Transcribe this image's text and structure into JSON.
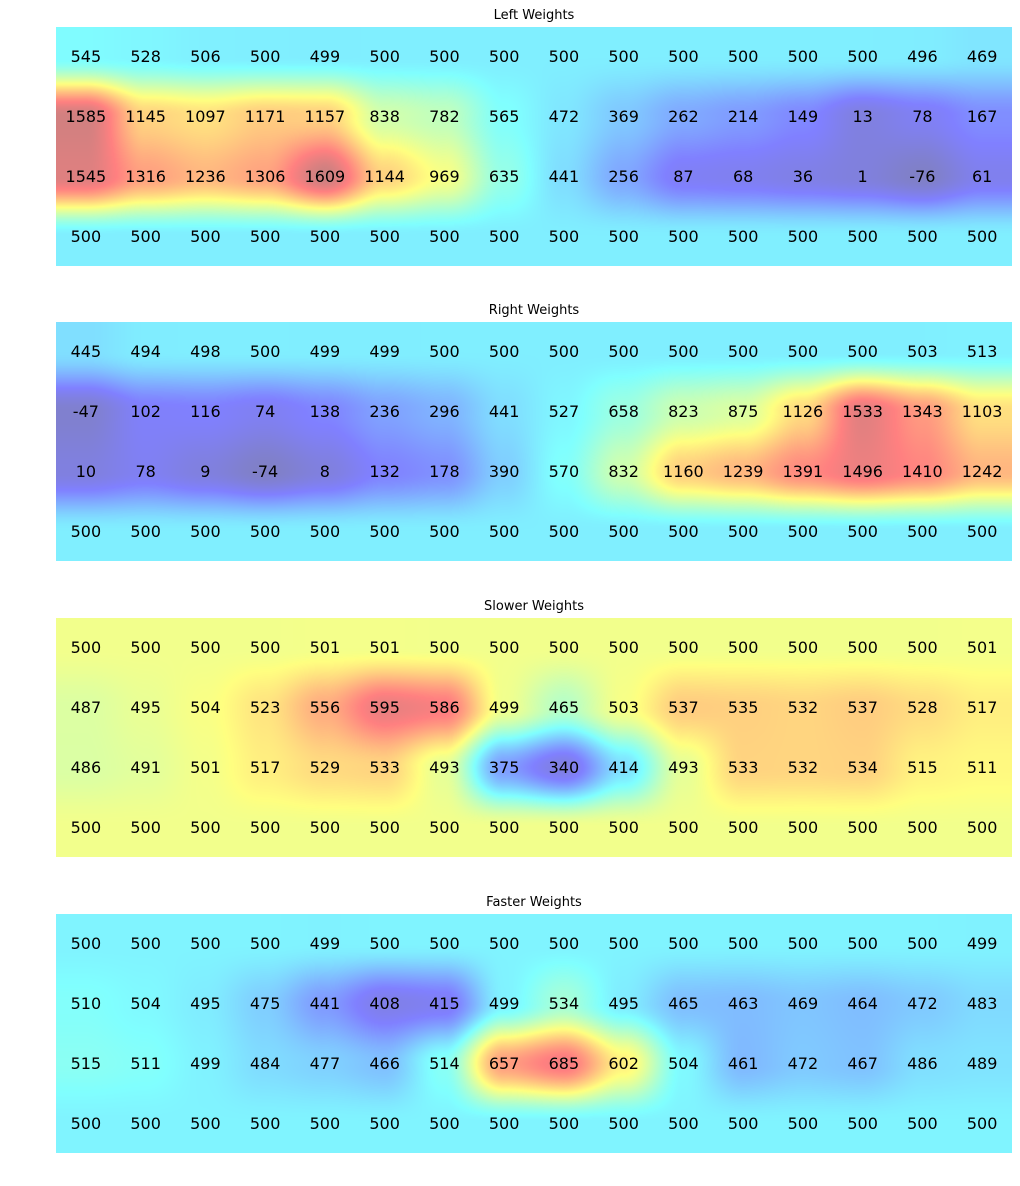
{
  "chart_data": [
    {
      "type": "heatmap",
      "title": "Left Weights",
      "values": [
        [
          545,
          528,
          506,
          500,
          499,
          500,
          500,
          500,
          500,
          500,
          500,
          500,
          500,
          500,
          496,
          469
        ],
        [
          1585,
          1145,
          1097,
          1171,
          1157,
          838,
          782,
          565,
          472,
          369,
          262,
          214,
          149,
          13,
          78,
          167
        ],
        [
          1545,
          1316,
          1236,
          1306,
          1609,
          1144,
          969,
          635,
          441,
          256,
          87,
          68,
          36,
          1,
          -76,
          61
        ],
        [
          500,
          500,
          500,
          500,
          500,
          500,
          500,
          500,
          500,
          500,
          500,
          500,
          500,
          500,
          500,
          500
        ]
      ],
      "colormap": "jet",
      "vmin": -100,
      "vmax": 1650
    },
    {
      "type": "heatmap",
      "title": "Right Weights",
      "values": [
        [
          445,
          494,
          498,
          500,
          499,
          499,
          500,
          500,
          500,
          500,
          500,
          500,
          500,
          500,
          503,
          513
        ],
        [
          -47,
          102,
          116,
          74,
          138,
          236,
          296,
          441,
          527,
          658,
          823,
          875,
          1126,
          1533,
          1343,
          1103
        ],
        [
          10,
          78,
          9,
          -74,
          8,
          132,
          178,
          390,
          570,
          832,
          1160,
          1239,
          1391,
          1496,
          1410,
          1242
        ],
        [
          500,
          500,
          500,
          500,
          500,
          500,
          500,
          500,
          500,
          500,
          500,
          500,
          500,
          500,
          500,
          500
        ]
      ],
      "colormap": "jet",
      "vmin": -100,
      "vmax": 1650
    },
    {
      "type": "heatmap",
      "title": "Slower Weights",
      "values": [
        [
          500,
          500,
          500,
          500,
          501,
          501,
          500,
          500,
          500,
          500,
          500,
          500,
          500,
          500,
          500,
          501
        ],
        [
          487,
          495,
          504,
          523,
          556,
          595,
          586,
          499,
          465,
          503,
          537,
          535,
          532,
          537,
          528,
          517
        ],
        [
          486,
          491,
          501,
          517,
          529,
          533,
          493,
          375,
          340,
          414,
          493,
          533,
          532,
          534,
          515,
          511
        ],
        [
          500,
          500,
          500,
          500,
          500,
          500,
          500,
          500,
          500,
          500,
          500,
          500,
          500,
          500,
          500,
          500
        ]
      ],
      "colormap": "jet",
      "vmin": 320,
      "vmax": 620
    },
    {
      "type": "heatmap",
      "title": "Faster Weights",
      "values": [
        [
          500,
          500,
          500,
          500,
          499,
          500,
          500,
          500,
          500,
          500,
          500,
          500,
          500,
          500,
          500,
          499
        ],
        [
          510,
          504,
          495,
          475,
          441,
          408,
          415,
          499,
          534,
          495,
          465,
          463,
          469,
          464,
          472,
          483
        ],
        [
          515,
          511,
          499,
          484,
          477,
          466,
          514,
          657,
          685,
          602,
          504,
          461,
          472,
          467,
          486,
          489
        ],
        [
          500,
          500,
          500,
          500,
          500,
          500,
          500,
          500,
          500,
          500,
          500,
          500,
          500,
          500,
          500,
          500
        ]
      ],
      "colormap": "jet",
      "vmin": 380,
      "vmax": 720
    }
  ]
}
